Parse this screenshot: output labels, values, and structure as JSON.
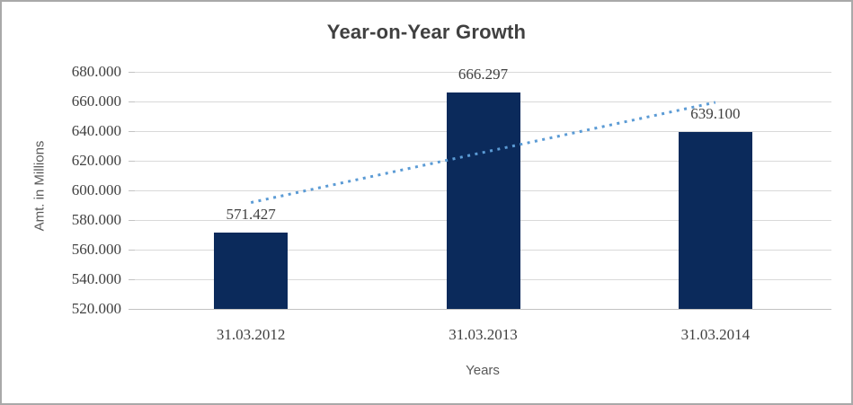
{
  "chart_data": {
    "type": "bar",
    "title": "Year-on-Year Growth",
    "xlabel": "Years",
    "ylabel": "Amt. in Millions",
    "categories": [
      "31.03.2012",
      "31.03.2013",
      "31.03.2014"
    ],
    "values": [
      571.427,
      666.297,
      639.1
    ],
    "data_labels": [
      "571.427",
      "666.297",
      "639.100"
    ],
    "ylim": [
      520,
      680
    ],
    "ytick_step": 20,
    "ytick_labels": [
      "680.000",
      "660.000",
      "640.000",
      "620.000",
      "600.000",
      "580.000",
      "560.000",
      "540.000",
      "520.000"
    ],
    "grid": true,
    "legend": false,
    "trendline": {
      "style": "dotted",
      "start_value": 591.8,
      "end_value": 659.4
    },
    "colors": {
      "bar": "#0b2a5b",
      "trendline": "#5b9bd5",
      "gridline": "#d9d9d9",
      "axis_line": "#c3c3c3",
      "title_text": "#404040",
      "tick_text": "#404040",
      "axis_title_text": "#595959"
    }
  }
}
